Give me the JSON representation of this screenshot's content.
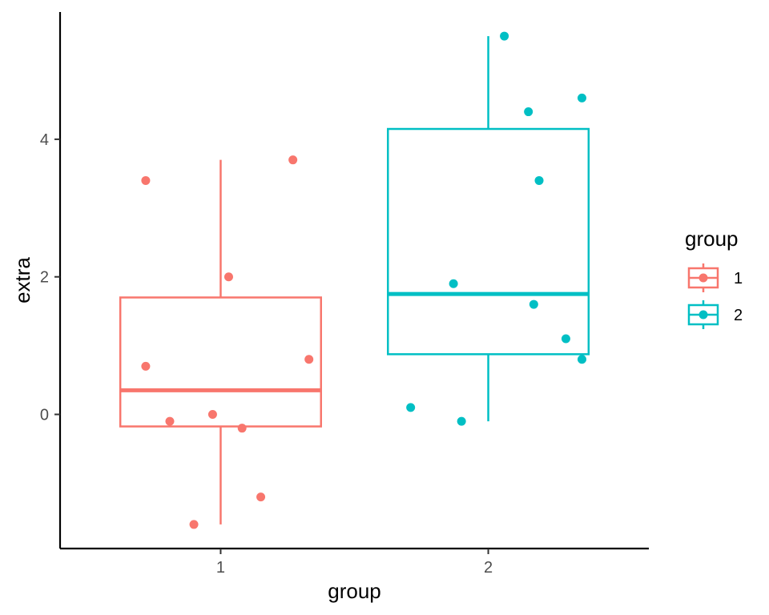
{
  "chart_data": {
    "type": "boxplot",
    "xlabel": "group",
    "ylabel": "extra",
    "categories": [
      "1",
      "2"
    ],
    "ylim": [
      -1.95,
      5.85
    ],
    "y_ticks": [
      0,
      2,
      4
    ],
    "y_tick_labels": [
      "0",
      "2",
      "4"
    ],
    "x_tick_labels": [
      "1",
      "2"
    ],
    "legend": {
      "title": "group",
      "position": "right",
      "entries": [
        "1",
        "2"
      ]
    },
    "colors": {
      "1": "#F8766D",
      "2": "#00BFC4"
    },
    "boxes": [
      {
        "group": "1",
        "min": -1.6,
        "q1": -0.175,
        "median": 0.35,
        "q3": 1.7,
        "max": 3.7
      },
      {
        "group": "2",
        "min": -0.1,
        "q1": 0.875,
        "median": 1.75,
        "q3": 4.15,
        "max": 5.5
      }
    ],
    "points": [
      {
        "group": "1",
        "value": 0.7,
        "jitter": -0.28
      },
      {
        "group": "1",
        "value": -1.6,
        "jitter": -0.1
      },
      {
        "group": "1",
        "value": -0.2,
        "jitter": 0.08
      },
      {
        "group": "1",
        "value": -1.2,
        "jitter": 0.15
      },
      {
        "group": "1",
        "value": -0.1,
        "jitter": -0.19
      },
      {
        "group": "1",
        "value": 3.4,
        "jitter": -0.28
      },
      {
        "group": "1",
        "value": 3.7,
        "jitter": 0.27
      },
      {
        "group": "1",
        "value": 0.8,
        "jitter": 0.33
      },
      {
        "group": "1",
        "value": 0.0,
        "jitter": -0.03
      },
      {
        "group": "1",
        "value": 2.0,
        "jitter": 0.03
      },
      {
        "group": "2",
        "value": 1.9,
        "jitter": -0.13
      },
      {
        "group": "2",
        "value": 0.8,
        "jitter": 0.35
      },
      {
        "group": "2",
        "value": 1.1,
        "jitter": 0.29
      },
      {
        "group": "2",
        "value": 0.1,
        "jitter": -0.29
      },
      {
        "group": "2",
        "value": -0.1,
        "jitter": -0.1
      },
      {
        "group": "2",
        "value": 4.4,
        "jitter": 0.15
      },
      {
        "group": "2",
        "value": 5.5,
        "jitter": 0.06
      },
      {
        "group": "2",
        "value": 1.6,
        "jitter": 0.17
      },
      {
        "group": "2",
        "value": 4.6,
        "jitter": 0.35
      },
      {
        "group": "2",
        "value": 3.4,
        "jitter": 0.19
      }
    ]
  }
}
